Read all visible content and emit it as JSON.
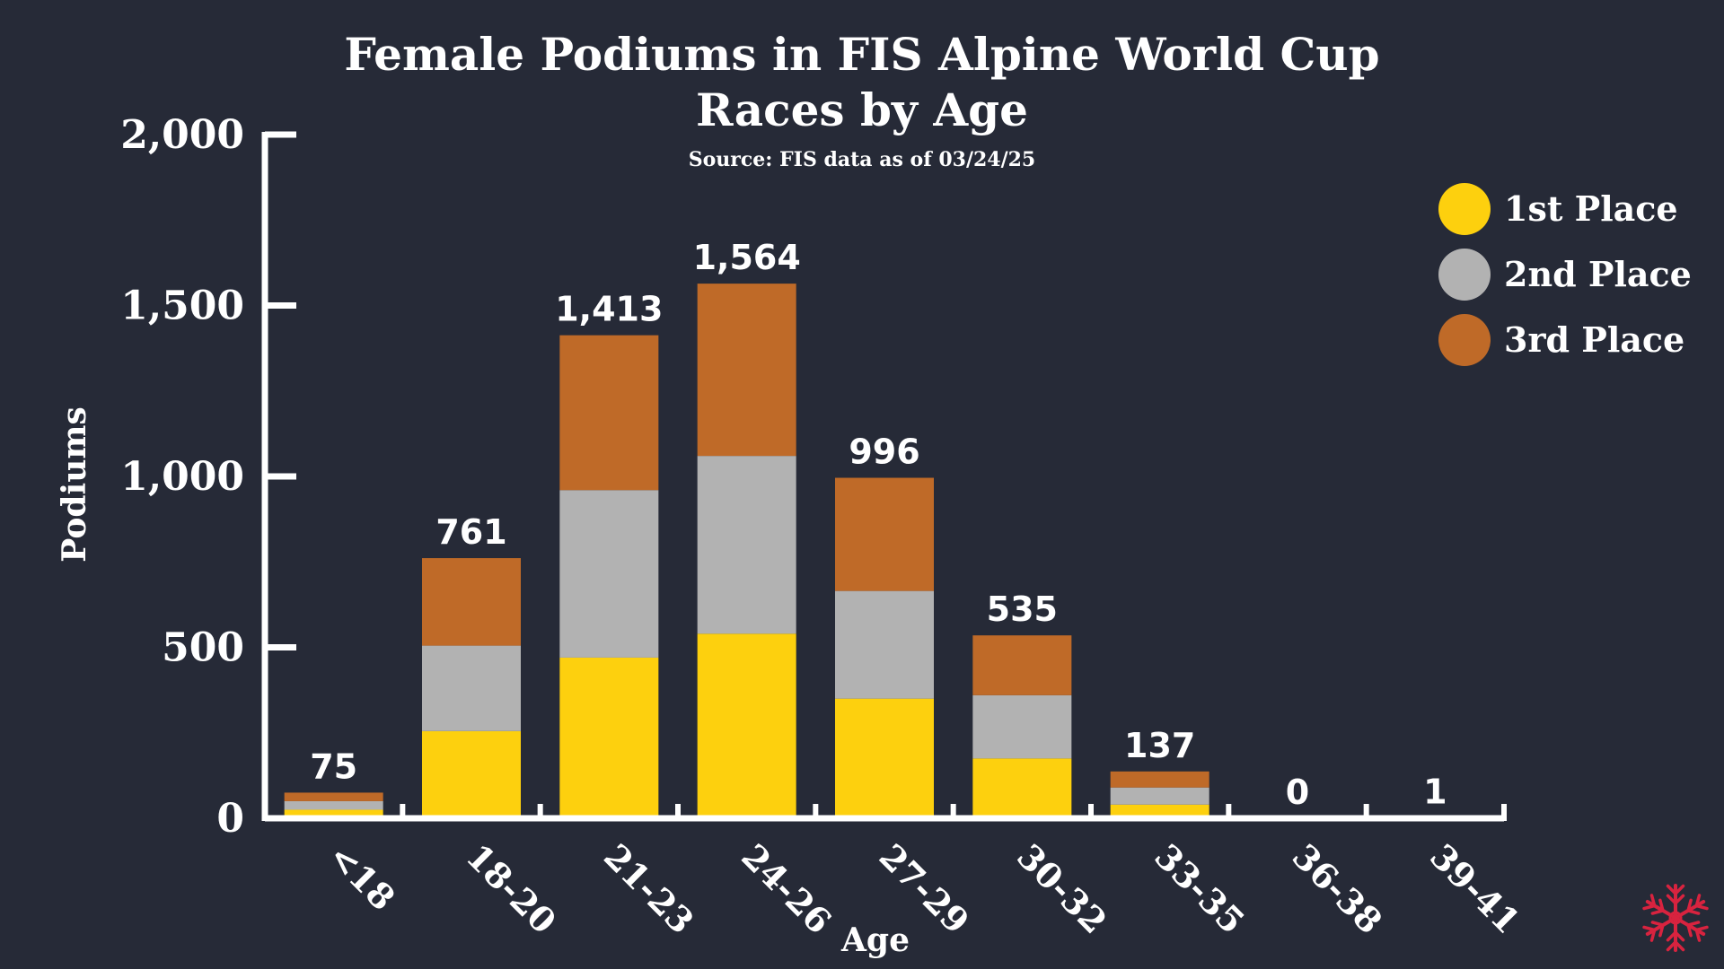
{
  "chart_data": {
    "type": "bar",
    "stacked": true,
    "title_line1": "Female Podiums in FIS Alpine World Cup",
    "title_line2": "Races by Age",
    "subtitle": "Source: FIS data as of 03/24/25",
    "xlabel": "Age",
    "ylabel": "Podiums",
    "ylim": [
      0,
      2000
    ],
    "yticks": [
      0,
      500,
      1000,
      1500,
      2000
    ],
    "ytick_labels": [
      "0",
      "500",
      "1,000",
      "1,500",
      "2,000"
    ],
    "categories": [
      "<18",
      "18-20",
      "21-23",
      "24-26",
      "27-29",
      "30-32",
      "33-35",
      "36-38",
      "39-41"
    ],
    "series": [
      {
        "name": "1st Place",
        "color": "#fdd00e",
        "values": [
          25,
          255,
          470,
          540,
          350,
          175,
          40,
          0,
          1
        ]
      },
      {
        "name": "2nd Place",
        "color": "#b2b2b2",
        "values": [
          25,
          250,
          490,
          520,
          315,
          185,
          50,
          0,
          0
        ]
      },
      {
        "name": "3rd Place",
        "color": "#bf6a28",
        "values": [
          25,
          256,
          453,
          504,
          331,
          175,
          47,
          0,
          0
        ]
      }
    ],
    "totals": [
      75,
      761,
      1413,
      1564,
      996,
      535,
      137,
      0,
      1
    ],
    "total_labels": [
      "75",
      "761",
      "1,413",
      "1,564",
      "996",
      "535",
      "137",
      "0",
      "1"
    ],
    "legend_position": "top-right",
    "grid": false
  },
  "colors": {
    "background": "#262a37",
    "axis": "#ffffff",
    "logo": "#d8233f"
  },
  "logo_icon": "snowflake-icon"
}
